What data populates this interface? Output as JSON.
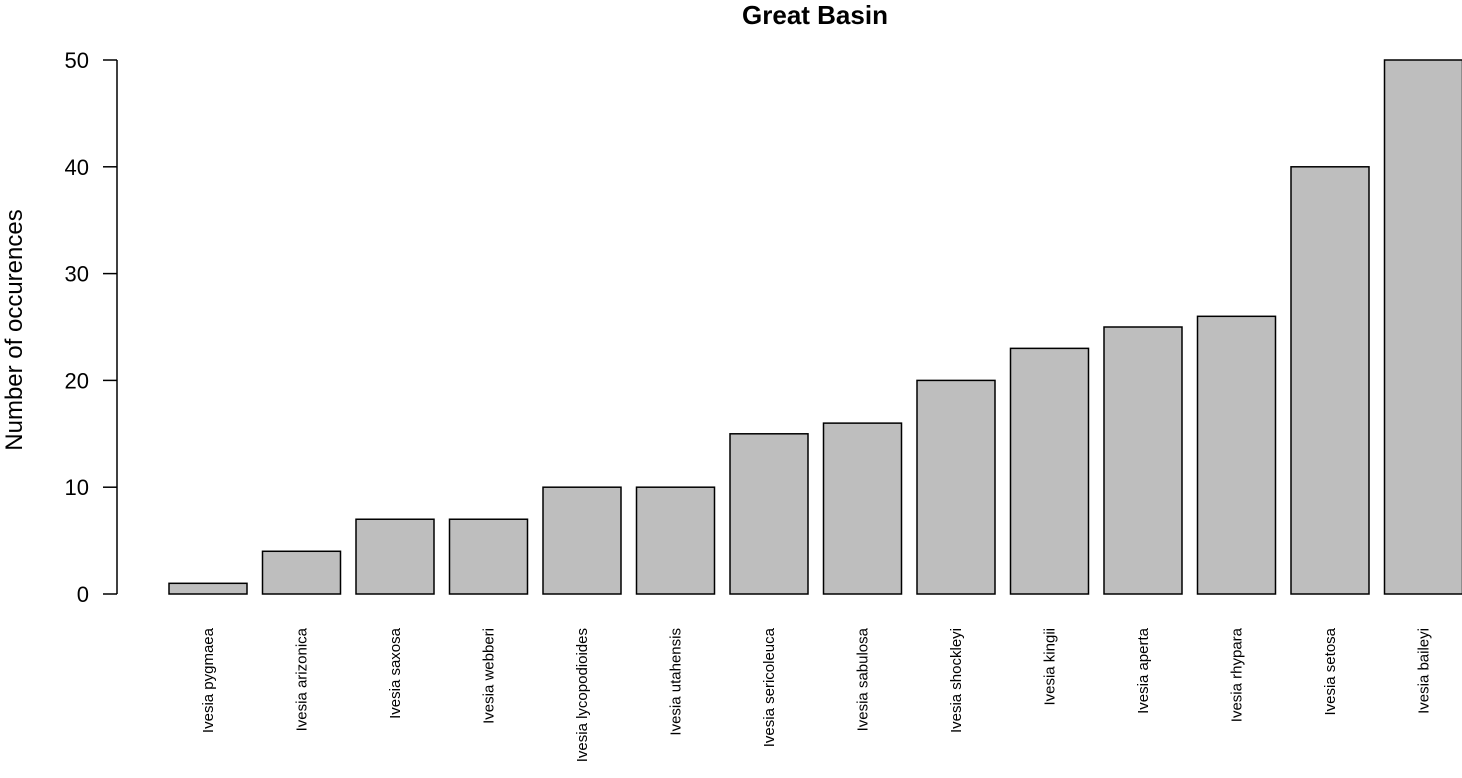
{
  "chart_data": {
    "type": "bar",
    "title": "Great Basin",
    "xlabel": "",
    "ylabel": "Number of occurences",
    "ylim": [
      0,
      50
    ],
    "yticks": [
      0,
      10,
      20,
      30,
      40,
      50
    ],
    "grid": false,
    "categories": [
      "Ivesia pygmaea",
      "Ivesia arizonica",
      "Ivesia saxosa",
      "Ivesia webberi",
      "Ivesia lycopodioides",
      "Ivesia utahensis",
      "Ivesia sericoleuca",
      "Ivesia sabulosa",
      "Ivesia shockleyi",
      "Ivesia kingii",
      "Ivesia aperta",
      "Ivesia rhypara",
      "Ivesia setosa",
      "Ivesia baileyi"
    ],
    "values": [
      1,
      4,
      7,
      7,
      10,
      10,
      15,
      16,
      20,
      23,
      25,
      26,
      40,
      50
    ],
    "colors": {
      "bar_fill": "#bebebe",
      "bar_stroke": "#000000"
    }
  }
}
